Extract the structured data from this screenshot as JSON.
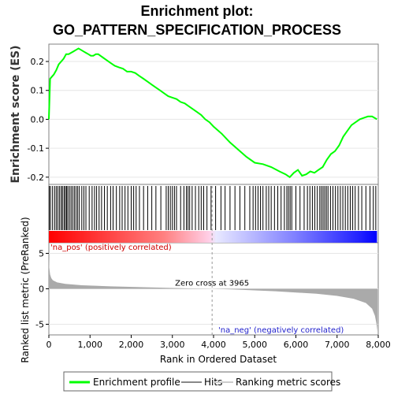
{
  "chart_data": {
    "type": "line",
    "title_line1": "Enrichment plot:",
    "title_line2": "GO_PATTERN_SPECIFICATION_PROCESS",
    "es_panel": {
      "ylabel": "Enrichment score (ES)",
      "ylim": [
        -0.225,
        0.26
      ],
      "yticks": [
        0.2,
        0.1,
        0.0,
        -0.1,
        -0.2
      ],
      "ytick_labels": [
        "0.2",
        "0.1",
        "0.0",
        "-0.1",
        "-0.2"
      ],
      "series": [
        {
          "color": "#00ff00",
          "x": [
            0,
            30,
            60,
            120,
            180,
            240,
            300,
            360,
            420,
            480,
            540,
            600,
            660,
            720,
            780,
            840,
            900,
            960,
            1020,
            1080,
            1140,
            1200,
            1300,
            1400,
            1500,
            1600,
            1700,
            1800,
            1900,
            2000,
            2100,
            2200,
            2300,
            2400,
            2500,
            2600,
            2700,
            2800,
            2900,
            3000,
            3100,
            3200,
            3300,
            3400,
            3500,
            3600,
            3700,
            3800,
            3900,
            4000,
            4200,
            4400,
            4600,
            4800,
            5000,
            5200,
            5400,
            5600,
            5750,
            5850,
            5950,
            6050,
            6150,
            6250,
            6350,
            6450,
            6550,
            6650,
            6750,
            6850,
            6950,
            7050,
            7150,
            7250,
            7350,
            7450,
            7550,
            7650,
            7750,
            7850,
            7970
          ],
          "y": [
            0.0,
            0.14,
            0.145,
            0.155,
            0.17,
            0.19,
            0.2,
            0.21,
            0.225,
            0.225,
            0.23,
            0.235,
            0.24,
            0.245,
            0.24,
            0.235,
            0.23,
            0.225,
            0.22,
            0.22,
            0.225,
            0.225,
            0.215,
            0.205,
            0.195,
            0.185,
            0.18,
            0.175,
            0.165,
            0.165,
            0.16,
            0.15,
            0.14,
            0.13,
            0.12,
            0.11,
            0.1,
            0.09,
            0.08,
            0.075,
            0.07,
            0.06,
            0.055,
            0.045,
            0.035,
            0.025,
            0.015,
            0.0,
            -0.01,
            -0.025,
            -0.05,
            -0.08,
            -0.105,
            -0.13,
            -0.15,
            -0.155,
            -0.165,
            -0.18,
            -0.19,
            -0.2,
            -0.185,
            -0.175,
            -0.195,
            -0.19,
            -0.18,
            -0.185,
            -0.175,
            -0.165,
            -0.14,
            -0.12,
            -0.11,
            -0.09,
            -0.06,
            -0.04,
            -0.02,
            -0.01,
            0.0,
            0.005,
            0.01,
            0.01,
            0.0
          ]
        }
      ]
    },
    "hits_panel": {
      "hit_ranks": [
        10,
        40,
        90,
        140,
        180,
        220,
        260,
        300,
        330,
        370,
        400,
        430,
        460,
        500,
        540,
        580,
        620,
        660,
        700,
        740,
        800,
        850,
        900,
        980,
        1050,
        1110,
        1160,
        1220,
        1280,
        1350,
        1420,
        1500,
        1560,
        1640,
        1720,
        1780,
        1850,
        1920,
        2000,
        2060,
        2120,
        2200,
        2300,
        2400,
        2500,
        2600,
        2720,
        2850,
        2900,
        2950,
        3000,
        3050,
        3100,
        3200,
        3280,
        3340,
        3380,
        3420,
        3480,
        3560,
        3640,
        3700,
        3760,
        3840,
        3940,
        4050,
        4180,
        4280,
        4400,
        4520,
        4640,
        4760,
        4880,
        4960,
        5020,
        5080,
        5140,
        5200,
        5280,
        5340,
        5400,
        5480,
        5560,
        5640,
        5720,
        5780,
        5820,
        5860,
        5900,
        6000,
        6100,
        6200,
        6280,
        6340,
        6400,
        6460,
        6520,
        6580,
        6620,
        6660,
        6700,
        6740,
        6780,
        6840,
        6900,
        6960,
        7020,
        7080,
        7140,
        7200,
        7260,
        7320,
        7380,
        7440,
        7520,
        7600,
        7700,
        7800,
        7880,
        7940
      ]
    },
    "metric_panel": {
      "ylabel": "Ranked list metric (PreRanked)",
      "ylim": [
        -6.5,
        6.5
      ],
      "yticks": [
        5,
        0,
        -5
      ],
      "ytick_labels": [
        "5",
        "0",
        "-5"
      ],
      "zero_cross_label": "Zero cross at 3965",
      "zero_cross_x": 3965,
      "pos_label": "'na_pos' (positively correlated)",
      "neg_label": "'na_neg' (negatively correlated)",
      "profile_x": [
        0,
        10,
        30,
        60,
        100,
        200,
        400,
        800,
        1500,
        2500,
        3500,
        3965,
        4500,
        5500,
        6500,
        7000,
        7400,
        7700,
        7850,
        7920,
        7960,
        7980
      ],
      "profile_y": [
        4.5,
        3.0,
        2.0,
        1.5,
        1.2,
        0.9,
        0.7,
        0.5,
        0.35,
        0.2,
        0.05,
        0.0,
        -0.1,
        -0.35,
        -0.7,
        -1.0,
        -1.4,
        -2.0,
        -2.8,
        -3.8,
        -5.0,
        -6.0
      ]
    },
    "x_axis": {
      "xlabel": "Rank in Ordered Dataset",
      "xlim": [
        0,
        8000
      ],
      "xticks": [
        0,
        1000,
        2000,
        3000,
        4000,
        5000,
        6000,
        7000,
        8000
      ],
      "xtick_labels": [
        "0",
        "1,000",
        "2,000",
        "3,000",
        "4,000",
        "5,000",
        "6,000",
        "7,000",
        "8,000"
      ]
    },
    "legend": {
      "placement": "bottom",
      "items": [
        {
          "label": "Enrichment profile",
          "color": "#00ff00"
        },
        {
          "label": "Hits",
          "color": "#888888"
        },
        {
          "label": "Ranking metric scores",
          "color": "#cccccc"
        }
      ]
    }
  }
}
